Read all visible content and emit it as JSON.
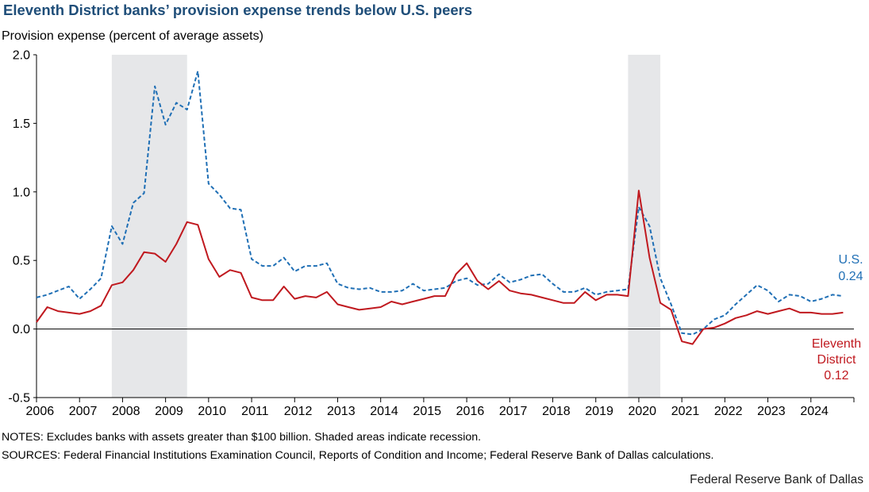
{
  "header": {
    "title": "Eleventh District banks’ provision expense trends below U.S. peers",
    "ylabel": "Provision expense (percent of average assets)"
  },
  "footer": {
    "notes": "NOTES: Excludes banks with assets greater than $100 billion. Shaded areas indicate recession.",
    "sources": "SOURCES: Federal Financial Institutions  Examination Council, Reports of Condition and Income; Federal Reserve Bank of Dallas calculations.",
    "credit": "Federal Reserve Bank of Dallas"
  },
  "colors": {
    "us": "#1f6fb5",
    "district": "#c0191f",
    "recession": "#e6e7e9",
    "title": "#1f4e79"
  },
  "chart_data": {
    "type": "line",
    "title": "Eleventh District banks’ provision expense trends below U.S. peers",
    "ylabel": "Provision expense (percent of average assets)",
    "xlabel": "",
    "ylim": [
      -0.5,
      2.0
    ],
    "yticks": [
      -0.5,
      0.0,
      0.5,
      1.0,
      1.5,
      2.0
    ],
    "ytick_labels": [
      "-0.5",
      "0.0",
      "0.5",
      "1.0",
      "1.5",
      "2.0"
    ],
    "xlim": [
      2006.0,
      2025.0
    ],
    "xticks": [
      "2006",
      "2007",
      "2008",
      "2009",
      "2010",
      "2011",
      "2012",
      "2013",
      "2014",
      "2015",
      "2016",
      "2017",
      "2018",
      "2019",
      "2020",
      "2021",
      "2022",
      "2023",
      "2024"
    ],
    "grid": false,
    "recessions": [
      [
        2007.75,
        2009.5
      ],
      [
        2019.75,
        2020.5
      ]
    ],
    "x_start": 2006.0,
    "x_step": 0.25,
    "series": [
      {
        "name": "U.S.",
        "style": "dashed",
        "end_label": "U.S.",
        "end_value_label": "0.24",
        "values": [
          0.23,
          0.25,
          0.28,
          0.31,
          0.22,
          0.29,
          0.37,
          0.75,
          0.62,
          0.92,
          0.99,
          1.77,
          1.49,
          1.65,
          1.6,
          1.88,
          1.06,
          0.98,
          0.88,
          0.87,
          0.51,
          0.46,
          0.46,
          0.52,
          0.42,
          0.46,
          0.46,
          0.48,
          0.33,
          0.3,
          0.29,
          0.3,
          0.27,
          0.27,
          0.28,
          0.33,
          0.28,
          0.29,
          0.3,
          0.35,
          0.37,
          0.32,
          0.33,
          0.4,
          0.34,
          0.36,
          0.39,
          0.4,
          0.33,
          0.27,
          0.27,
          0.3,
          0.25,
          0.27,
          0.28,
          0.29,
          0.89,
          0.75,
          0.37,
          0.18,
          -0.03,
          -0.04,
          0.0,
          0.07,
          0.1,
          0.18,
          0.25,
          0.32,
          0.28,
          0.2,
          0.25,
          0.24,
          0.2,
          0.22,
          0.25,
          0.24
        ]
      },
      {
        "name": "Eleventh District",
        "style": "solid",
        "end_label_lines": [
          "Eleventh",
          "District"
        ],
        "end_value_label": "0.12",
        "values": [
          0.05,
          0.16,
          0.13,
          0.12,
          0.11,
          0.13,
          0.17,
          0.32,
          0.34,
          0.43,
          0.56,
          0.55,
          0.49,
          0.62,
          0.78,
          0.76,
          0.51,
          0.38,
          0.43,
          0.41,
          0.23,
          0.21,
          0.21,
          0.31,
          0.22,
          0.24,
          0.23,
          0.27,
          0.18,
          0.16,
          0.14,
          0.15,
          0.16,
          0.2,
          0.18,
          0.2,
          0.22,
          0.24,
          0.24,
          0.4,
          0.48,
          0.35,
          0.29,
          0.35,
          0.28,
          0.26,
          0.25,
          0.23,
          0.21,
          0.19,
          0.19,
          0.27,
          0.21,
          0.25,
          0.25,
          0.24,
          1.01,
          0.52,
          0.19,
          0.14,
          -0.09,
          -0.11,
          0.0,
          0.01,
          0.04,
          0.08,
          0.1,
          0.13,
          0.11,
          0.13,
          0.15,
          0.12,
          0.12,
          0.11,
          0.11,
          0.12
        ]
      }
    ]
  }
}
